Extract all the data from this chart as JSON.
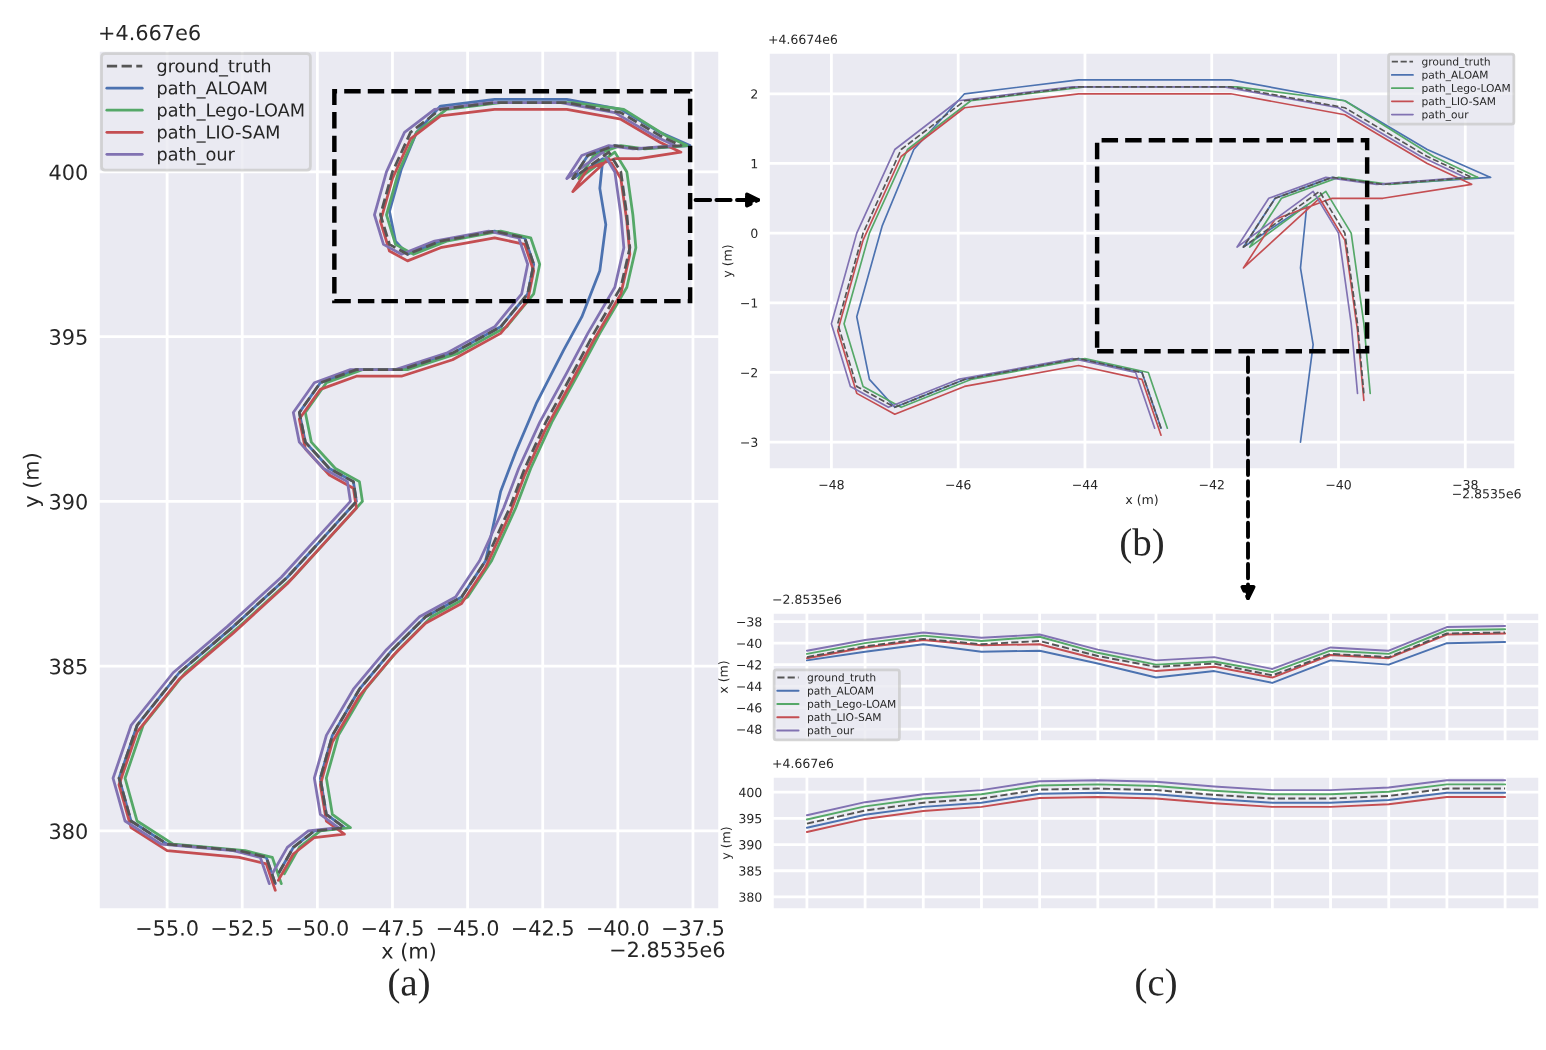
{
  "chart_data": [
    {
      "type": "line",
      "xlabel": "x (m)",
      "ylabel": "y (m)",
      "legend": "top left",
      "grid": true,
      "marker": "none",
      "xlim": [
        -57.3,
        -36.6
      ],
      "ylim": [
        377.6,
        403.7
      ],
      "xticks": [
        {
          "value": -55,
          "label": "−55.0"
        },
        {
          "value": -52.5,
          "label": "−52.5"
        },
        {
          "value": -50,
          "label": "−50.0"
        },
        {
          "value": -47.5,
          "label": "−47.5"
        },
        {
          "value": -45,
          "label": "−45.0"
        },
        {
          "value": -42.5,
          "label": "−42.5"
        },
        {
          "value": -40,
          "label": "−40.0"
        },
        {
          "value": -37.5,
          "label": "−37.5"
        }
      ],
      "yticks": [
        380,
        385,
        390,
        395,
        400
      ],
      "annotations": [
        "+4.667e6",
        "−2.8535e6",
        "(a)"
      ],
      "series": [
        {
          "name": "ground_truth",
          "color": "#555555",
          "line_style": "dashed",
          "x": [
            -51.4,
            -51.7,
            -52.6,
            -55.0,
            -56.2,
            -56.6,
            -56.0,
            -54.6,
            -52.8,
            -51.0,
            -49.6,
            -48.7,
            -48.8,
            -49.6,
            -50.4,
            -50.6,
            -49.9,
            -48.7,
            -47.2,
            -45.5,
            -43.9,
            -43.0,
            -42.8,
            -43.1,
            -44.1,
            -45.9,
            -47.0,
            -47.6,
            -47.9,
            -47.5,
            -46.9,
            -45.9,
            -44.1,
            -41.7,
            -39.9,
            -38.6,
            -37.9,
            -39.3,
            -40.1,
            -41.0,
            -41.5,
            -40.3,
            -39.9,
            -39.7,
            -39.6,
            -39.9,
            -40.8,
            -41.5,
            -42.4,
            -43.1,
            -43.6,
            -44.4,
            -45.2,
            -46.4,
            -47.5,
            -48.6,
            -49.5,
            -49.9,
            -49.7,
            -49.1,
            -50.1,
            -50.8,
            -51.3
          ],
          "values": [
            378.4,
            379.2,
            379.4,
            379.6,
            380.3,
            381.6,
            383.2,
            384.8,
            386.2,
            387.7,
            389.1,
            390.0,
            390.6,
            391.0,
            391.8,
            392.7,
            393.6,
            394.0,
            394.0,
            394.5,
            395.3,
            396.3,
            397.2,
            398.0,
            398.2,
            397.9,
            397.5,
            397.8,
            398.7,
            400.0,
            401.2,
            401.9,
            402.1,
            402.1,
            401.8,
            401.1,
            400.8,
            400.7,
            400.8,
            400.5,
            399.8,
            400.6,
            400.0,
            398.7,
            397.7,
            396.5,
            395.1,
            393.9,
            392.4,
            391.0,
            389.8,
            388.2,
            387.1,
            386.5,
            385.5,
            384.3,
            382.9,
            381.6,
            380.5,
            380.1,
            380.0,
            379.5,
            378.7
          ]
        },
        {
          "name": "path_ALOAM",
          "color": "#4c72b0",
          "x": [
            -51.4,
            -51.7,
            -52.6,
            -55.0,
            -56.2,
            -56.6,
            -56.0,
            -54.6,
            -52.8,
            -51.0,
            -49.6,
            -48.7,
            -48.8,
            -49.6,
            -50.4,
            -50.6,
            -49.9,
            -48.7,
            -47.2,
            -45.5,
            -43.9,
            -43.0,
            -42.8,
            -43.1,
            -44.1,
            -45.9,
            -47.0,
            -47.4,
            -47.6,
            -47.2,
            -46.7,
            -45.9,
            -44.1,
            -41.7,
            -39.9,
            -38.6,
            -37.6,
            -39.3,
            -40.1,
            -41.0,
            -41.5,
            -40.5,
            -40.6,
            -40.4,
            -40.6,
            -41.2,
            -41.8,
            -42.7,
            -43.4,
            -43.9,
            -44.4,
            -45.2,
            -46.4,
            -47.5,
            -48.6,
            -49.5,
            -49.9,
            -49.7,
            -49.1,
            -50.1,
            -50.8,
            -51.3
          ],
          "values": [
            378.4,
            379.2,
            379.4,
            379.6,
            380.3,
            381.6,
            383.2,
            384.8,
            386.2,
            387.7,
            389.1,
            390.0,
            390.6,
            391.0,
            391.8,
            392.7,
            393.6,
            394.0,
            394.0,
            394.5,
            395.3,
            396.3,
            397.2,
            398.0,
            398.2,
            397.9,
            397.5,
            397.9,
            398.8,
            400.1,
            401.2,
            402.0,
            402.2,
            402.2,
            401.9,
            401.2,
            400.8,
            400.7,
            400.8,
            400.5,
            399.8,
            400.4,
            399.5,
            398.4,
            397.0,
            395.6,
            394.6,
            393.0,
            391.5,
            390.3,
            388.2,
            387.1,
            386.5,
            385.5,
            384.3,
            382.9,
            381.6,
            380.5,
            380.1,
            380.0,
            379.5,
            378.7
          ]
        },
        {
          "name": "path_Lego-LOAM",
          "color": "#55a868",
          "x": [
            -51.2,
            -51.5,
            -52.4,
            -54.8,
            -56.0,
            -56.4,
            -55.8,
            -54.4,
            -52.6,
            -50.8,
            -49.4,
            -48.5,
            -48.6,
            -49.4,
            -50.2,
            -50.4,
            -49.7,
            -48.5,
            -47.0,
            -45.3,
            -43.7,
            -42.8,
            -42.6,
            -42.9,
            -43.9,
            -45.7,
            -46.8,
            -47.4,
            -47.7,
            -47.3,
            -46.7,
            -45.7,
            -43.9,
            -41.5,
            -39.8,
            -38.4,
            -37.7,
            -39.1,
            -39.9,
            -40.8,
            -41.3,
            -40.1,
            -39.7,
            -39.5,
            -39.4,
            -39.7,
            -40.6,
            -41.3,
            -42.2,
            -42.9,
            -43.4,
            -44.2,
            -45.0,
            -46.2,
            -47.3,
            -48.4,
            -49.3,
            -49.7,
            -49.5,
            -48.9,
            -49.9,
            -50.6,
            -51.1
          ],
          "values": [
            378.4,
            379.2,
            379.4,
            379.6,
            380.3,
            381.6,
            383.2,
            384.8,
            386.2,
            387.7,
            389.1,
            390.0,
            390.6,
            391.0,
            391.8,
            392.7,
            393.6,
            394.0,
            394.0,
            394.5,
            395.3,
            396.3,
            397.2,
            398.0,
            398.2,
            397.9,
            397.5,
            397.8,
            398.7,
            400.0,
            401.2,
            401.9,
            402.1,
            402.1,
            401.9,
            401.1,
            400.8,
            400.7,
            400.8,
            400.5,
            399.8,
            400.6,
            400.0,
            398.7,
            397.7,
            396.5,
            395.1,
            393.9,
            392.4,
            391.0,
            389.8,
            388.2,
            387.1,
            386.5,
            385.5,
            384.3,
            382.9,
            381.6,
            380.5,
            380.1,
            380.0,
            379.5,
            378.7
          ]
        },
        {
          "name": "path_LIO-SAM",
          "color": "#c44e52",
          "x": [
            -51.4,
            -51.7,
            -52.6,
            -55.0,
            -56.2,
            -56.6,
            -56.0,
            -54.6,
            -52.8,
            -51.0,
            -49.6,
            -48.7,
            -48.8,
            -49.6,
            -50.4,
            -50.6,
            -49.9,
            -48.7,
            -47.2,
            -45.5,
            -43.9,
            -43.0,
            -42.8,
            -43.1,
            -44.1,
            -45.9,
            -47.0,
            -47.6,
            -47.9,
            -47.5,
            -46.9,
            -45.9,
            -44.1,
            -41.7,
            -39.9,
            -38.6,
            -37.9,
            -39.3,
            -40.1,
            -41.0,
            -41.5,
            -40.3,
            -39.9,
            -39.7,
            -39.6,
            -39.9,
            -40.8,
            -41.5,
            -42.4,
            -43.1,
            -43.6,
            -44.4,
            -45.2,
            -46.4,
            -47.5,
            -48.6,
            -49.5,
            -49.9,
            -49.7,
            -49.1,
            -50.1,
            -50.8,
            -51.3
          ],
          "values": [
            378.2,
            379.0,
            379.2,
            379.4,
            380.1,
            381.4,
            383.0,
            384.6,
            386.0,
            387.5,
            388.9,
            389.8,
            390.4,
            390.8,
            391.6,
            392.5,
            393.4,
            393.8,
            393.8,
            394.3,
            395.1,
            396.1,
            397.0,
            397.8,
            398.0,
            397.7,
            397.3,
            397.6,
            398.5,
            399.8,
            401.0,
            401.7,
            401.9,
            401.9,
            401.6,
            400.9,
            400.6,
            400.4,
            400.4,
            400.1,
            399.4,
            400.4,
            399.8,
            398.5,
            397.5,
            396.3,
            394.9,
            393.7,
            392.2,
            390.8,
            389.6,
            388.0,
            386.9,
            386.3,
            385.3,
            384.1,
            382.7,
            381.4,
            380.3,
            379.9,
            379.8,
            379.3,
            378.5
          ]
        },
        {
          "name": "path_our",
          "color": "#8172b2",
          "x": [
            -51.6,
            -51.9,
            -52.8,
            -55.2,
            -56.4,
            -56.8,
            -56.2,
            -54.8,
            -53.0,
            -51.2,
            -49.8,
            -48.9,
            -49.0,
            -49.8,
            -50.6,
            -50.8,
            -50.1,
            -48.9,
            -47.4,
            -45.7,
            -44.1,
            -43.2,
            -43.0,
            -43.3,
            -44.3,
            -46.1,
            -47.2,
            -47.8,
            -48.1,
            -47.7,
            -47.1,
            -46.1,
            -44.3,
            -41.9,
            -40.1,
            -38.8,
            -38.1,
            -39.5,
            -40.3,
            -41.2,
            -41.7,
            -40.5,
            -40.1,
            -39.9,
            -39.8,
            -40.1,
            -41.0,
            -41.7,
            -42.6,
            -43.3,
            -43.8,
            -44.6,
            -45.4,
            -46.6,
            -47.7,
            -48.8,
            -49.7,
            -50.1,
            -49.9,
            -49.3,
            -50.3,
            -51.0,
            -51.5
          ],
          "values": [
            378.4,
            379.2,
            379.4,
            379.6,
            380.3,
            381.6,
            383.2,
            384.8,
            386.2,
            387.7,
            389.1,
            390.0,
            390.6,
            391.0,
            391.8,
            392.7,
            393.6,
            394.0,
            394.0,
            394.5,
            395.3,
            396.3,
            397.2,
            398.0,
            398.2,
            397.9,
            397.5,
            397.8,
            398.7,
            400.0,
            401.2,
            401.9,
            402.1,
            402.1,
            401.8,
            401.1,
            400.8,
            400.7,
            400.8,
            400.5,
            399.8,
            400.6,
            400.0,
            398.7,
            397.7,
            396.5,
            395.1,
            393.9,
            392.4,
            391.0,
            389.8,
            388.2,
            387.1,
            386.5,
            385.5,
            384.3,
            382.9,
            381.6,
            380.5,
            380.1,
            380.0,
            379.5,
            378.7
          ]
        }
      ]
    },
    {
      "type": "line",
      "xlabel": "x (m)",
      "ylabel": "y (m)",
      "legend": "top right",
      "grid": true,
      "marker": "none",
      "xlim": [
        -49.0,
        -37.2
      ],
      "ylim": [
        -3.4,
        2.6
      ],
      "xticks": [
        {
          "value": -48,
          "label": "−48"
        },
        {
          "value": -46,
          "label": "−46"
        },
        {
          "value": -44,
          "label": "−44"
        },
        {
          "value": -42,
          "label": "−42"
        },
        {
          "value": -40,
          "label": "−40"
        },
        {
          "value": -38,
          "label": "−38"
        }
      ],
      "yticks": [
        {
          "value": -3,
          "label": "−3"
        },
        {
          "value": -2,
          "label": "−2"
        },
        {
          "value": -1,
          "label": "−1"
        },
        0,
        1,
        2
      ],
      "annotations": [
        "+4.6674e6",
        "−2.8535e6",
        "(b)"
      ],
      "series": [
        {
          "name": "ground_truth",
          "color": "#555555",
          "line_style": "dashed",
          "x": [
            -42.8,
            -43.1,
            -44.1,
            -45.9,
            -47.0,
            -47.6,
            -47.9,
            -47.5,
            -46.9,
            -45.9,
            -44.1,
            -41.7,
            -39.9,
            -38.6,
            -37.9,
            -39.3,
            -40.1,
            -41.0,
            -41.5,
            -40.3,
            -39.9,
            -39.7,
            -39.6
          ],
          "values": [
            -2.8,
            -2.0,
            -1.8,
            -2.1,
            -2.5,
            -2.2,
            -1.3,
            0.0,
            1.2,
            1.9,
            2.1,
            2.1,
            1.8,
            1.1,
            0.8,
            0.7,
            0.8,
            0.5,
            -0.2,
            0.6,
            0.0,
            -1.3,
            -2.3
          ]
        },
        {
          "name": "path_ALOAM",
          "color": "#4c72b0",
          "x": [
            -42.8,
            -43.1,
            -44.1,
            -45.9,
            -47.0,
            -47.4,
            -47.6,
            -47.2,
            -46.7,
            -45.9,
            -44.1,
            -41.7,
            -39.9,
            -38.6,
            -37.6,
            -39.3,
            -40.1,
            -41.0,
            -41.5,
            -40.5,
            -40.6,
            -40.4,
            -40.6
          ],
          "values": [
            -2.8,
            -2.0,
            -1.8,
            -2.1,
            -2.5,
            -2.1,
            -1.2,
            0.1,
            1.2,
            2.0,
            2.2,
            2.2,
            1.9,
            1.2,
            0.8,
            0.7,
            0.8,
            0.5,
            -0.2,
            0.4,
            -0.5,
            -1.6,
            -3.0
          ]
        },
        {
          "name": "path_Lego-LOAM",
          "color": "#55a868",
          "x": [
            -42.7,
            -43.0,
            -44.0,
            -45.8,
            -46.9,
            -47.5,
            -47.8,
            -47.4,
            -46.8,
            -45.8,
            -44.0,
            -41.6,
            -39.9,
            -38.5,
            -37.8,
            -39.2,
            -40.0,
            -40.9,
            -41.4,
            -40.2,
            -39.8,
            -39.6,
            -39.5
          ],
          "values": [
            -2.8,
            -2.0,
            -1.8,
            -2.1,
            -2.5,
            -2.2,
            -1.3,
            0.0,
            1.2,
            1.9,
            2.1,
            2.1,
            1.9,
            1.1,
            0.8,
            0.7,
            0.8,
            0.5,
            -0.2,
            0.6,
            0.0,
            -1.3,
            -2.3
          ]
        },
        {
          "name": "path_LIO-SAM",
          "color": "#c44e52",
          "x": [
            -42.8,
            -43.1,
            -44.1,
            -45.9,
            -47.0,
            -47.6,
            -47.9,
            -47.5,
            -46.9,
            -45.9,
            -44.1,
            -41.7,
            -39.9,
            -38.6,
            -37.9,
            -39.3,
            -40.1,
            -41.0,
            -41.5,
            -40.3,
            -39.9,
            -39.7,
            -39.6
          ],
          "values": [
            -2.9,
            -2.1,
            -1.9,
            -2.2,
            -2.6,
            -2.3,
            -1.4,
            -0.1,
            1.1,
            1.8,
            2.0,
            2.0,
            1.7,
            1.0,
            0.7,
            0.5,
            0.5,
            0.2,
            -0.5,
            0.5,
            -0.1,
            -1.4,
            -2.4
          ]
        },
        {
          "name": "path_our",
          "color": "#8172b2",
          "x": [
            -42.9,
            -43.2,
            -44.2,
            -46.0,
            -47.1,
            -47.7,
            -48.0,
            -47.6,
            -47.0,
            -46.0,
            -44.2,
            -41.8,
            -40.0,
            -38.7,
            -38.0,
            -39.4,
            -40.2,
            -41.1,
            -41.6,
            -40.4,
            -40.0,
            -39.8,
            -39.7
          ],
          "values": [
            -2.8,
            -2.0,
            -1.8,
            -2.1,
            -2.5,
            -2.2,
            -1.3,
            0.0,
            1.2,
            1.9,
            2.1,
            2.1,
            1.8,
            1.1,
            0.8,
            0.7,
            0.8,
            0.5,
            -0.2,
            0.6,
            0.0,
            -1.3,
            -2.3
          ]
        }
      ]
    },
    {
      "type": "line",
      "ylabel": "x (m)",
      "legend": "bottom left",
      "grid": true,
      "marker": "none",
      "tick_labels": "y",
      "categories": [
        null,
        null,
        null,
        null,
        null,
        null,
        null,
        null,
        null,
        null,
        null,
        null,
        null
      ],
      "ylim": [
        -49.2,
        -37.1
      ],
      "yticks": [
        {
          "value": -48,
          "label": "−48"
        },
        {
          "value": -46,
          "label": "−46"
        },
        {
          "value": -44,
          "label": "−44"
        },
        {
          "value": -42,
          "label": "−42"
        },
        {
          "value": -40,
          "label": "−40"
        },
        {
          "value": -38,
          "label": "−38"
        }
      ],
      "annotations": [
        "−2.8535e6"
      ],
      "series": [
        {
          "name": "ground_truth",
          "color": "#555555",
          "line_style": "dashed",
          "values": [
            -41.3,
            -40.3,
            -39.6,
            -40.1,
            -39.8,
            -41.2,
            -42.2,
            -41.9,
            -43.0,
            -41.0,
            -41.3,
            -39.1,
            -39.0
          ]
        },
        {
          "name": "path_ALOAM",
          "color": "#4c72b0",
          "values": [
            -41.6,
            -40.8,
            -40.1,
            -40.8,
            -40.7,
            -41.9,
            -43.2,
            -42.6,
            -43.7,
            -41.6,
            -42.0,
            -40.0,
            -39.9
          ]
        },
        {
          "name": "path_Lego-LOAM",
          "color": "#55a868",
          "values": [
            -41.0,
            -40.0,
            -39.3,
            -39.8,
            -39.4,
            -40.9,
            -42.0,
            -41.7,
            -42.7,
            -40.7,
            -41.0,
            -38.8,
            -38.7
          ]
        },
        {
          "name": "path_LIO-SAM",
          "color": "#c44e52",
          "values": [
            -41.4,
            -40.4,
            -39.7,
            -40.2,
            -40.1,
            -41.5,
            -42.6,
            -42.2,
            -43.2,
            -41.1,
            -41.4,
            -39.2,
            -39.1
          ]
        },
        {
          "name": "path_our",
          "color": "#8172b2",
          "values": [
            -40.7,
            -39.7,
            -39.0,
            -39.5,
            -39.2,
            -40.6,
            -41.6,
            -41.3,
            -42.4,
            -40.4,
            -40.7,
            -38.5,
            -38.4
          ]
        }
      ]
    },
    {
      "type": "line",
      "ylabel": "y (m)",
      "grid": true,
      "marker": "none",
      "tick_labels": "y",
      "categories": [
        null,
        null,
        null,
        null,
        null,
        null,
        null,
        null,
        null,
        null,
        null,
        null,
        null
      ],
      "ylim": [
        377.5,
        403.1
      ],
      "yticks": [
        380,
        385,
        390,
        395,
        400
      ],
      "annotations": [
        "+4.667e6",
        "(c)"
      ],
      "series": [
        {
          "color": "#555555",
          "line_style": "dashed",
          "values": [
            394.0,
            396.5,
            398.0,
            398.8,
            400.5,
            400.7,
            400.4,
            399.5,
            398.8,
            398.8,
            399.3,
            400.7,
            400.7
          ]
        },
        {
          "color": "#4c72b0",
          "values": [
            393.2,
            395.7,
            397.2,
            398.0,
            399.7,
            399.9,
            399.6,
            398.7,
            398.0,
            398.0,
            398.5,
            399.9,
            399.9
          ]
        },
        {
          "color": "#55a868",
          "values": [
            394.8,
            397.3,
            398.8,
            399.6,
            401.3,
            401.5,
            401.2,
            400.3,
            399.6,
            399.6,
            400.1,
            401.5,
            401.5
          ]
        },
        {
          "color": "#c44e52",
          "values": [
            392.4,
            394.9,
            396.4,
            397.2,
            398.9,
            399.1,
            398.8,
            397.9,
            397.2,
            397.2,
            397.7,
            399.1,
            399.1
          ]
        },
        {
          "color": "#8172b2",
          "values": [
            395.6,
            398.1,
            399.6,
            400.4,
            402.1,
            402.3,
            402.0,
            401.1,
            400.4,
            400.4,
            400.9,
            402.3,
            402.3
          ]
        }
      ]
    }
  ]
}
